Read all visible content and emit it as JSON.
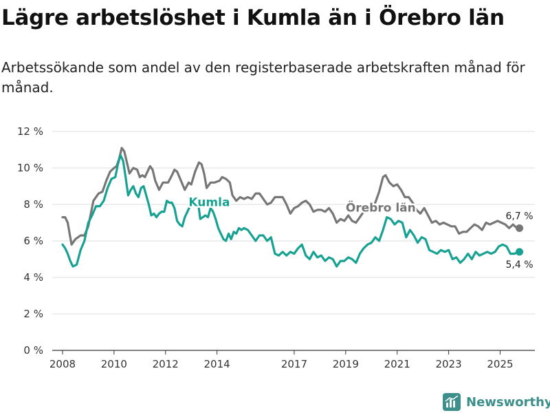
{
  "header": {
    "title": "Lägre arbetslöshet i Kumla än i Örebro län",
    "subtitle": "Arbetssökande som andel av den registerbaserade arbetskraften månad för månad."
  },
  "brand": {
    "name": "Newsworthy",
    "color": "#3c8f8a"
  },
  "chart_data": {
    "type": "line",
    "title": "Lägre arbetslöshet i Kumla än i Örebro län",
    "subtitle": "Arbetssökande som andel av den registerbaserade arbetskraften månad för månad.",
    "xlabel": "",
    "ylabel": "",
    "ylim": [
      0,
      12
    ],
    "xlim": [
      2007.6,
      2026.35
    ],
    "yticks": [
      0,
      2,
      4,
      6,
      8,
      10,
      12
    ],
    "ytick_labels": [
      "0 %",
      "2 %",
      "4 %",
      "6 %",
      "8 %",
      "10 %",
      "12 %"
    ],
    "xticks": [
      2008,
      2010,
      2012,
      2014,
      2017,
      2019,
      2021,
      2023,
      2025
    ],
    "xtick_labels": [
      "2008",
      "2010",
      "2012",
      "2014",
      "2017",
      "2019",
      "2021",
      "2023",
      "2025"
    ],
    "grid": true,
    "series": [
      {
        "name": "Örebro län",
        "color": "#767676",
        "label_at": [
          2019.0,
          7.6
        ],
        "end_label": "6,7 %",
        "end_label_pos": "above",
        "points": [
          [
            2008.0,
            7.3
          ],
          [
            2008.1,
            7.3
          ],
          [
            2008.2,
            7.0
          ],
          [
            2008.3,
            6.2
          ],
          [
            2008.35,
            5.8
          ],
          [
            2008.5,
            6.1
          ],
          [
            2008.7,
            6.3
          ],
          [
            2008.85,
            6.3
          ],
          [
            2009.0,
            6.8
          ],
          [
            2009.2,
            8.2
          ],
          [
            2009.4,
            8.6
          ],
          [
            2009.55,
            8.7
          ],
          [
            2009.7,
            9.3
          ],
          [
            2009.85,
            9.8
          ],
          [
            2010.0,
            10.0
          ],
          [
            2010.1,
            10.1
          ],
          [
            2010.2,
            10.5
          ],
          [
            2010.3,
            11.1
          ],
          [
            2010.4,
            10.9
          ],
          [
            2010.5,
            10.3
          ],
          [
            2010.6,
            9.7
          ],
          [
            2010.75,
            10.0
          ],
          [
            2010.9,
            9.9
          ],
          [
            2011.0,
            9.5
          ],
          [
            2011.1,
            9.6
          ],
          [
            2011.2,
            9.5
          ],
          [
            2011.3,
            9.8
          ],
          [
            2011.4,
            10.1
          ],
          [
            2011.5,
            9.9
          ],
          [
            2011.6,
            9.3
          ],
          [
            2011.75,
            8.8
          ],
          [
            2011.9,
            9.2
          ],
          [
            2012.1,
            9.2
          ],
          [
            2012.25,
            9.6
          ],
          [
            2012.35,
            9.9
          ],
          [
            2012.45,
            9.8
          ],
          [
            2012.6,
            9.3
          ],
          [
            2012.75,
            8.8
          ],
          [
            2012.9,
            9.2
          ],
          [
            2013.0,
            9.1
          ],
          [
            2013.15,
            9.8
          ],
          [
            2013.3,
            10.3
          ],
          [
            2013.4,
            10.2
          ],
          [
            2013.5,
            9.7
          ],
          [
            2013.6,
            8.9
          ],
          [
            2013.75,
            9.2
          ],
          [
            2013.9,
            9.2
          ],
          [
            2014.1,
            9.3
          ],
          [
            2014.2,
            9.5
          ],
          [
            2014.35,
            9.4
          ],
          [
            2014.5,
            9.2
          ],
          [
            2014.6,
            8.5
          ],
          [
            2014.75,
            8.2
          ],
          [
            2014.9,
            8.4
          ],
          [
            2015.05,
            8.3
          ],
          [
            2015.2,
            8.4
          ],
          [
            2015.35,
            8.3
          ],
          [
            2015.5,
            8.6
          ],
          [
            2015.65,
            8.6
          ],
          [
            2015.8,
            8.3
          ],
          [
            2015.95,
            8.0
          ],
          [
            2016.1,
            8.1
          ],
          [
            2016.25,
            8.4
          ],
          [
            2016.4,
            8.4
          ],
          [
            2016.55,
            8.4
          ],
          [
            2016.7,
            8.0
          ],
          [
            2016.85,
            7.5
          ],
          [
            2017.0,
            7.8
          ],
          [
            2017.15,
            7.9
          ],
          [
            2017.3,
            8.1
          ],
          [
            2017.45,
            8.2
          ],
          [
            2017.6,
            8.0
          ],
          [
            2017.75,
            7.6
          ],
          [
            2017.9,
            7.7
          ],
          [
            2018.05,
            7.7
          ],
          [
            2018.2,
            7.6
          ],
          [
            2018.35,
            7.8
          ],
          [
            2018.5,
            7.5
          ],
          [
            2018.65,
            7.0
          ],
          [
            2018.8,
            7.2
          ],
          [
            2018.95,
            7.1
          ],
          [
            2019.1,
            7.4
          ],
          [
            2019.25,
            7.1
          ],
          [
            2019.4,
            7.0
          ],
          [
            2019.55,
            7.3
          ],
          [
            2019.7,
            7.6
          ],
          [
            2019.85,
            7.9
          ],
          [
            2020.0,
            8.0
          ],
          [
            2020.15,
            8.1
          ],
          [
            2020.3,
            8.7
          ],
          [
            2020.45,
            9.5
          ],
          [
            2020.55,
            9.6
          ],
          [
            2020.7,
            9.2
          ],
          [
            2020.85,
            9.0
          ],
          [
            2021.0,
            9.1
          ],
          [
            2021.15,
            8.8
          ],
          [
            2021.3,
            8.4
          ],
          [
            2021.45,
            8.4
          ],
          [
            2021.6,
            8.1
          ],
          [
            2021.75,
            7.7
          ],
          [
            2021.9,
            7.5
          ],
          [
            2022.05,
            7.8
          ],
          [
            2022.2,
            7.4
          ],
          [
            2022.35,
            7.0
          ],
          [
            2022.5,
            7.1
          ],
          [
            2022.65,
            6.9
          ],
          [
            2022.8,
            7.0
          ],
          [
            2022.95,
            6.9
          ],
          [
            2023.1,
            6.8
          ],
          [
            2023.25,
            6.8
          ],
          [
            2023.4,
            6.4
          ],
          [
            2023.55,
            6.5
          ],
          [
            2023.7,
            6.5
          ],
          [
            2023.85,
            6.7
          ],
          [
            2024.0,
            6.9
          ],
          [
            2024.15,
            6.8
          ],
          [
            2024.3,
            6.6
          ],
          [
            2024.45,
            7.0
          ],
          [
            2024.6,
            6.9
          ],
          [
            2024.75,
            7.0
          ],
          [
            2024.9,
            7.1
          ],
          [
            2025.05,
            7.0
          ],
          [
            2025.2,
            6.9
          ],
          [
            2025.35,
            6.7
          ],
          [
            2025.5,
            6.9
          ],
          [
            2025.65,
            6.7
          ],
          [
            2025.75,
            6.7
          ]
        ]
      },
      {
        "name": "Kumla",
        "color": "#17a193",
        "label_at": [
          2012.9,
          7.9
        ],
        "end_label": "5,4 %",
        "end_label_pos": "below",
        "points": [
          [
            2008.0,
            5.8
          ],
          [
            2008.1,
            5.6
          ],
          [
            2008.2,
            5.3
          ],
          [
            2008.3,
            4.9
          ],
          [
            2008.4,
            4.6
          ],
          [
            2008.55,
            4.7
          ],
          [
            2008.7,
            5.5
          ],
          [
            2008.85,
            6.0
          ],
          [
            2009.0,
            7.0
          ],
          [
            2009.15,
            7.4
          ],
          [
            2009.3,
            7.9
          ],
          [
            2009.45,
            7.9
          ],
          [
            2009.6,
            8.2
          ],
          [
            2009.75,
            8.9
          ],
          [
            2009.9,
            9.4
          ],
          [
            2010.05,
            9.5
          ],
          [
            2010.15,
            10.2
          ],
          [
            2010.25,
            10.7
          ],
          [
            2010.35,
            10.4
          ],
          [
            2010.45,
            9.5
          ],
          [
            2010.55,
            8.5
          ],
          [
            2010.65,
            8.8
          ],
          [
            2010.75,
            9.0
          ],
          [
            2010.85,
            8.6
          ],
          [
            2010.95,
            8.4
          ],
          [
            2011.05,
            8.9
          ],
          [
            2011.15,
            9.0
          ],
          [
            2011.25,
            8.5
          ],
          [
            2011.35,
            8.0
          ],
          [
            2011.45,
            7.4
          ],
          [
            2011.55,
            7.5
          ],
          [
            2011.65,
            7.3
          ],
          [
            2011.75,
            7.5
          ],
          [
            2011.85,
            7.6
          ],
          [
            2011.95,
            7.6
          ],
          [
            2012.05,
            8.2
          ],
          [
            2012.15,
            8.1
          ],
          [
            2012.25,
            8.1
          ],
          [
            2012.35,
            7.8
          ],
          [
            2012.45,
            7.1
          ],
          [
            2012.55,
            6.9
          ],
          [
            2012.65,
            6.8
          ],
          [
            2012.75,
            7.3
          ],
          [
            2012.85,
            7.6
          ],
          [
            2012.95,
            7.9
          ],
          [
            2013.05,
            8.2
          ],
          [
            2013.15,
            8.4
          ],
          [
            2013.25,
            8.3
          ],
          [
            2013.35,
            7.2
          ],
          [
            2013.45,
            7.3
          ],
          [
            2013.55,
            7.4
          ],
          [
            2013.65,
            7.3
          ],
          [
            2013.75,
            7.8
          ],
          [
            2013.85,
            7.6
          ],
          [
            2013.95,
            7.2
          ],
          [
            2014.05,
            6.7
          ],
          [
            2014.15,
            6.4
          ],
          [
            2014.25,
            6.1
          ],
          [
            2014.35,
            6.0
          ],
          [
            2014.45,
            6.4
          ],
          [
            2014.55,
            6.1
          ],
          [
            2014.65,
            6.5
          ],
          [
            2014.75,
            6.4
          ],
          [
            2014.85,
            6.7
          ],
          [
            2014.95,
            6.6
          ],
          [
            2015.05,
            6.7
          ],
          [
            2015.2,
            6.6
          ],
          [
            2015.35,
            6.3
          ],
          [
            2015.5,
            6.0
          ],
          [
            2015.65,
            6.3
          ],
          [
            2015.8,
            6.3
          ],
          [
            2015.95,
            6.0
          ],
          [
            2016.1,
            6.2
          ],
          [
            2016.25,
            5.3
          ],
          [
            2016.4,
            5.2
          ],
          [
            2016.55,
            5.4
          ],
          [
            2016.7,
            5.2
          ],
          [
            2016.85,
            5.4
          ],
          [
            2017.0,
            5.3
          ],
          [
            2017.15,
            5.6
          ],
          [
            2017.3,
            5.8
          ],
          [
            2017.45,
            5.2
          ],
          [
            2017.6,
            5.0
          ],
          [
            2017.75,
            5.4
          ],
          [
            2017.9,
            5.1
          ],
          [
            2018.05,
            5.2
          ],
          [
            2018.2,
            4.9
          ],
          [
            2018.35,
            5.1
          ],
          [
            2018.5,
            5.0
          ],
          [
            2018.65,
            4.6
          ],
          [
            2018.8,
            4.9
          ],
          [
            2018.95,
            4.9
          ],
          [
            2019.1,
            5.1
          ],
          [
            2019.25,
            5.0
          ],
          [
            2019.4,
            4.8
          ],
          [
            2019.55,
            5.3
          ],
          [
            2019.7,
            5.6
          ],
          [
            2019.85,
            5.8
          ],
          [
            2020.0,
            5.9
          ],
          [
            2020.15,
            6.2
          ],
          [
            2020.3,
            6.0
          ],
          [
            2020.45,
            6.6
          ],
          [
            2020.6,
            7.3
          ],
          [
            2020.75,
            7.2
          ],
          [
            2020.9,
            6.9
          ],
          [
            2021.05,
            7.1
          ],
          [
            2021.2,
            7.0
          ],
          [
            2021.35,
            6.2
          ],
          [
            2021.5,
            6.6
          ],
          [
            2021.65,
            6.3
          ],
          [
            2021.8,
            5.9
          ],
          [
            2021.95,
            6.2
          ],
          [
            2022.1,
            6.1
          ],
          [
            2022.25,
            5.5
          ],
          [
            2022.4,
            5.4
          ],
          [
            2022.55,
            5.3
          ],
          [
            2022.7,
            5.5
          ],
          [
            2022.85,
            5.4
          ],
          [
            2023.0,
            5.5
          ],
          [
            2023.15,
            5.0
          ],
          [
            2023.3,
            5.1
          ],
          [
            2023.45,
            4.8
          ],
          [
            2023.6,
            5.0
          ],
          [
            2023.75,
            5.3
          ],
          [
            2023.9,
            5.0
          ],
          [
            2024.05,
            5.4
          ],
          [
            2024.2,
            5.2
          ],
          [
            2024.35,
            5.3
          ],
          [
            2024.5,
            5.4
          ],
          [
            2024.65,
            5.3
          ],
          [
            2024.8,
            5.4
          ],
          [
            2024.95,
            5.7
          ],
          [
            2025.1,
            5.8
          ],
          [
            2025.25,
            5.7
          ],
          [
            2025.4,
            5.3
          ],
          [
            2025.55,
            5.3
          ],
          [
            2025.75,
            5.4
          ]
        ]
      }
    ]
  }
}
